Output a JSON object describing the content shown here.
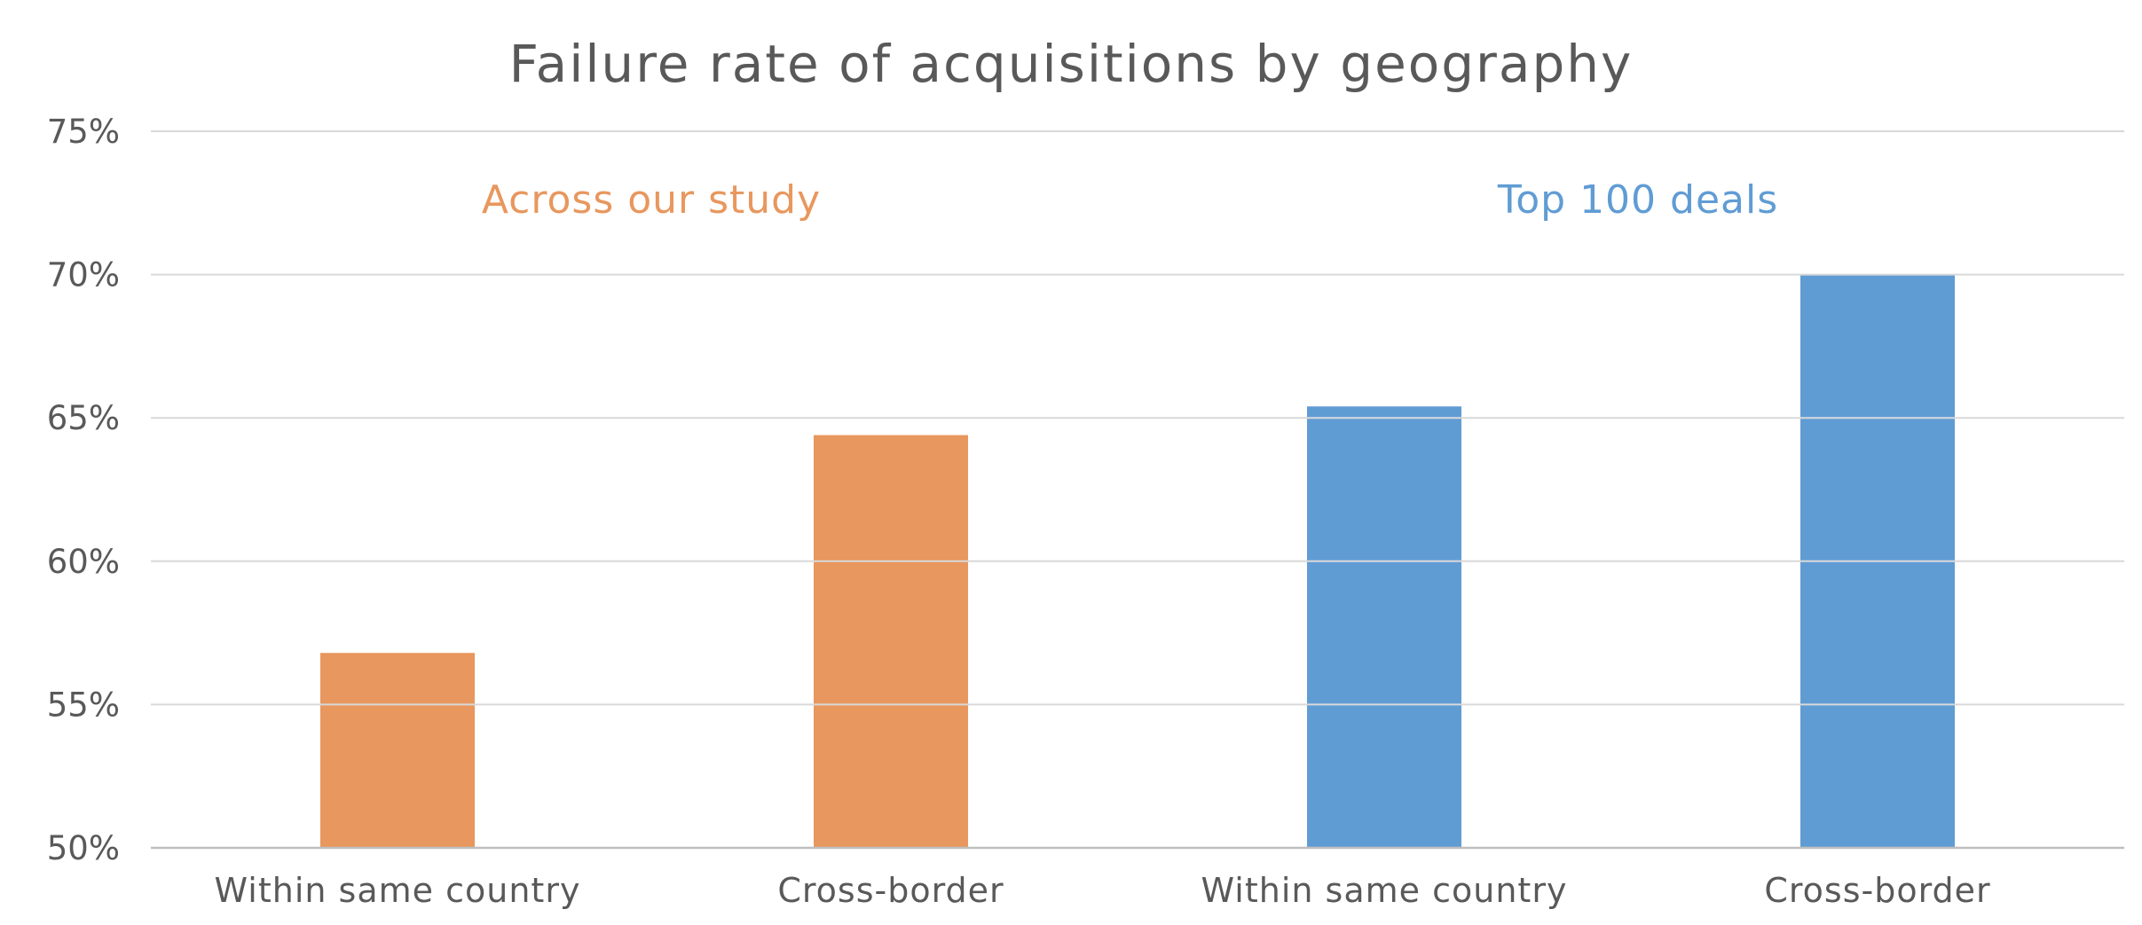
{
  "chart_data": {
    "type": "bar",
    "title": "Failure rate of acquisitions by geography",
    "xlabel": "",
    "ylabel": "",
    "ylim": [
      50,
      75
    ],
    "y_ticks": [
      50,
      55,
      60,
      65,
      70,
      75
    ],
    "y_tick_labels": [
      "50%",
      "55%",
      "60%",
      "65%",
      "70%",
      "75%"
    ],
    "grid": true,
    "legend": "none",
    "categories": [
      "Within same country",
      "Cross-border",
      "Within same country",
      "Cross-border"
    ],
    "groups": [
      {
        "label": "Across our study",
        "color": "#E8975E",
        "categories": [
          0,
          1
        ]
      },
      {
        "label": "Top 100 deals",
        "color": "#609CD4",
        "categories": [
          2,
          3
        ]
      }
    ],
    "values": [
      56.8,
      64.4,
      65.4,
      70.0
    ],
    "bar_colors": [
      "#E8975E",
      "#E8975E",
      "#609CD4",
      "#609CD4"
    ]
  }
}
